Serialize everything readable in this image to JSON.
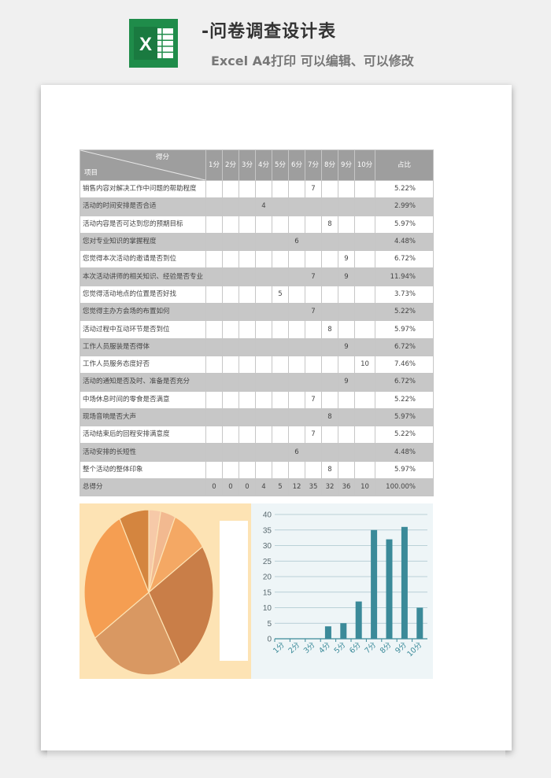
{
  "header": {
    "title": "-问卷调查设计表",
    "subtitle": "Excel A4打印 可以编辑、可以修改"
  },
  "table": {
    "corner_score": "得分",
    "corner_item": "项目",
    "score_headers": [
      "1分",
      "2分",
      "3分",
      "4分",
      "5分",
      "6分",
      "7分",
      "8分",
      "9分",
      "10分"
    ],
    "ratio_header": "占比",
    "rows": [
      {
        "name": "销售内容对解决工作中问题的帮助程度",
        "score": 7,
        "pct": "5.22%"
      },
      {
        "name": "活动的时间安排是否合适",
        "score": 4,
        "pct": "2.99%"
      },
      {
        "name": "活动内容是否可达到您的预期目标",
        "score": 8,
        "pct": "5.97%"
      },
      {
        "name": "您对专业知识的掌握程度",
        "score": 6,
        "pct": "4.48%"
      },
      {
        "name": "您觉得本次活动的邀请是否到位",
        "score": 9,
        "pct": "6.72%"
      },
      {
        "name": "本次活动讲师的相关知识、经验是否专业",
        "score": "7|9",
        "pct": "11.94%"
      },
      {
        "name": "您觉得活动地点的位置是否好找",
        "score": 5,
        "pct": "3.73%"
      },
      {
        "name": "您觉得主办方会场的布置如何",
        "score": 7,
        "pct": "5.22%"
      },
      {
        "name": "活动过程中互动环节是否到位",
        "score": 8,
        "pct": "5.97%"
      },
      {
        "name": "工作人员服装是否得体",
        "score": 9,
        "pct": "6.72%"
      },
      {
        "name": "工作人员服务态度好否",
        "score": 10,
        "pct": "7.46%"
      },
      {
        "name": "活动的通知是否及时、准备是否充分",
        "score": 9,
        "pct": "6.72%"
      },
      {
        "name": "中场休息时间的零食是否满意",
        "score": 7,
        "pct": "5.22%"
      },
      {
        "name": "现场音响是否大声",
        "score": 8,
        "pct": "5.97%"
      },
      {
        "name": "活动结束后的回程安排满意度",
        "score": 7,
        "pct": "5.22%"
      },
      {
        "name": "活动安排的长短性",
        "score": 6,
        "pct": "4.48%"
      },
      {
        "name": "整个活动的整体印象",
        "score": 8,
        "pct": "5.97%"
      }
    ],
    "total": {
      "name": "总得分",
      "values": [
        "0",
        "0",
        "0",
        "4",
        "5",
        "12",
        "35",
        "32",
        "36",
        "10"
      ],
      "pct": "100.00%"
    }
  },
  "chart_data": [
    {
      "type": "pie",
      "categories": [
        "1分",
        "2分",
        "3分",
        "4分",
        "5分",
        "6分",
        "7分",
        "8分",
        "9分",
        "10分"
      ],
      "values": [
        0,
        0,
        0,
        4,
        5,
        12,
        35,
        32,
        36,
        10
      ],
      "colors": [
        "#f5c8a0",
        "#f5c8a0",
        "#f5c8a0",
        "#f6c9a8",
        "#f2b990",
        "#f4a864",
        "#c97e48",
        "#d99862",
        "#f59e52",
        "#d4853f"
      ],
      "title": "",
      "legend": "right"
    },
    {
      "type": "bar",
      "categories": [
        "1分",
        "2分",
        "3分",
        "4分",
        "5分",
        "6分",
        "7分",
        "8分",
        "9分",
        "10分"
      ],
      "values": [
        0,
        0,
        0,
        4,
        5,
        12,
        35,
        32,
        36,
        10
      ],
      "color": "#3b8a99",
      "title": "",
      "xlabel": "",
      "ylabel": "",
      "ylim": [
        0,
        40
      ],
      "yticks": [
        "0",
        "5",
        "10",
        "15",
        "20",
        "25",
        "30",
        "35",
        "40"
      ],
      "grid": true
    }
  ]
}
